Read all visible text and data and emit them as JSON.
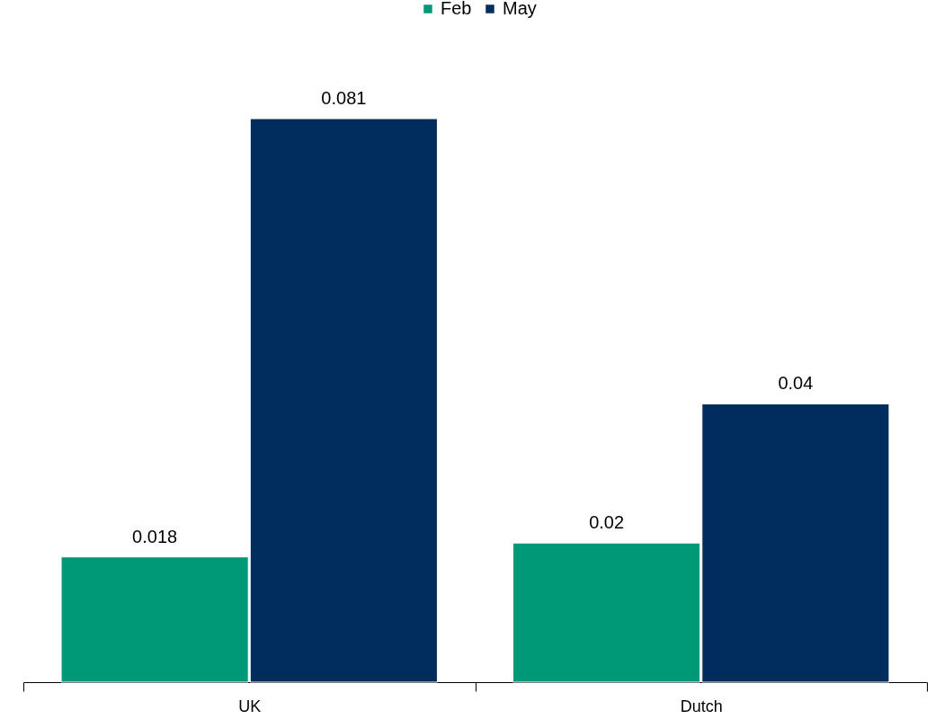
{
  "chart_data": {
    "type": "bar",
    "categories": [
      "UK",
      "Dutch"
    ],
    "series": [
      {
        "name": "Feb",
        "color": "#009977",
        "values": [
          0.018,
          0.02
        ]
      },
      {
        "name": "May",
        "color": "#002d5c",
        "values": [
          0.081,
          0.04
        ]
      }
    ],
    "data_labels": true,
    "legend": "top"
  }
}
